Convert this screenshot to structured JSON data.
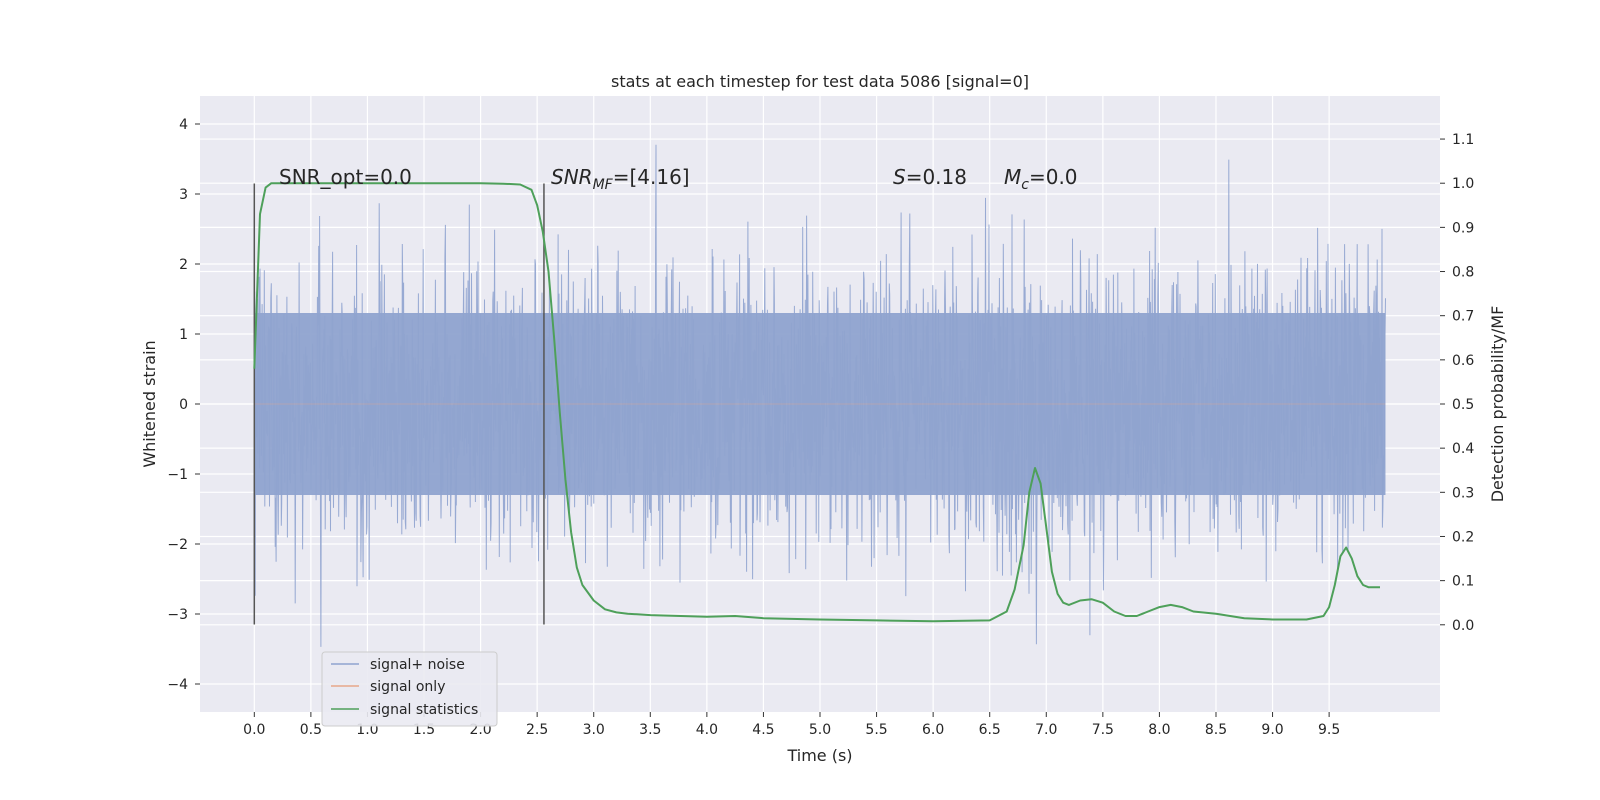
{
  "chart_data": {
    "type": "line",
    "title": "stats at each timestep for test data 5086 [signal=0]",
    "xlabel": "Time (s)",
    "ylabel": "Whitened strain",
    "y2label": "Detection probability/MF",
    "xlim": [
      -0.48,
      10.48
    ],
    "ylim": [
      -4.4,
      4.4
    ],
    "y2lim": [
      -0.1975,
      1.1975
    ],
    "x_ticks": [
      0.0,
      0.5,
      1.0,
      1.5,
      2.0,
      2.5,
      3.0,
      3.5,
      4.0,
      4.5,
      5.0,
      5.5,
      6.0,
      6.5,
      7.0,
      7.5,
      8.0,
      8.5,
      9.0,
      9.5
    ],
    "x_tick_labels": [
      "0.0",
      "0.5",
      "1.0",
      "1.5",
      "2.0",
      "2.5",
      "3.0",
      "3.5",
      "4.0",
      "4.5",
      "5.0",
      "5.5",
      "6.0",
      "6.5",
      "7.0",
      "7.5",
      "8.0",
      "8.5",
      "9.0",
      "9.5"
    ],
    "y_ticks": [
      4,
      3,
      2,
      1,
      0,
      -1,
      -2,
      -3,
      -4
    ],
    "y_tick_labels": [
      "4",
      "3",
      "2",
      "1",
      "0",
      "−1",
      "−2",
      "−3",
      "−4"
    ],
    "y2_ticks": [
      1.1,
      1.0,
      0.9,
      0.8,
      0.7,
      0.6,
      0.5,
      0.4,
      0.3,
      0.2,
      0.1,
      0.0
    ],
    "y2_tick_labels": [
      "1.1",
      "1.0",
      "0.9",
      "0.8",
      "0.7",
      "0.6",
      "0.5",
      "0.4",
      "0.3",
      "0.2",
      "0.1",
      "0.0"
    ],
    "grid": true,
    "legend_position": "lower-left",
    "legend": [
      {
        "label": "signal+ noise",
        "color": "#8fa3cf"
      },
      {
        "label": "signal only",
        "color": "#e8a88a"
      },
      {
        "label": "signal statistics",
        "color": "#4ea05a"
      }
    ],
    "annotations": {
      "snr_opt": "SNR_opt=0.0",
      "snr_mf_main": "SNR",
      "snr_mf_sub": "MF",
      "snr_mf_rest": "=[4.16]",
      "s_main": "S",
      "s_rest": "=0.18",
      "mc_main": "M",
      "mc_sub": "c",
      "mc_rest": "=0.0"
    },
    "vertical_markers": [
      {
        "x": 0.0,
        "y_range": [
          -3.15,
          3.15
        ]
      },
      {
        "x": 2.56,
        "y_range": [
          -3.15,
          3.15
        ]
      }
    ],
    "series": [
      {
        "name": "signal+ noise",
        "color": "#8fa3cf",
        "x_range": [
          0.0,
          9.998
        ],
        "core_range": [
          -1.3,
          1.3
        ],
        "envelope": [
          -2.5,
          2.5
        ],
        "max_abs": 4.05,
        "note_values": "whitened noise, dense samples"
      },
      {
        "name": "signal only",
        "color": "#e8a88a",
        "x": [
          0.0,
          9.998
        ],
        "y": [
          0.0,
          0.0
        ]
      },
      {
        "name": "signal statistics",
        "color": "#4ea05a",
        "axis": "right",
        "x": [
          0.0,
          0.05,
          0.1,
          0.15,
          0.25,
          0.5,
          1.0,
          1.5,
          2.0,
          2.2,
          2.35,
          2.45,
          2.5,
          2.55,
          2.6,
          2.65,
          2.7,
          2.75,
          2.8,
          2.85,
          2.9,
          3.0,
          3.1,
          3.2,
          3.3,
          3.5,
          4.0,
          4.25,
          4.5,
          5.0,
          5.5,
          6.0,
          6.5,
          6.65,
          6.72,
          6.8,
          6.85,
          6.9,
          6.95,
          7.0,
          7.05,
          7.1,
          7.15,
          7.2,
          7.3,
          7.4,
          7.5,
          7.6,
          7.7,
          7.8,
          7.9,
          8.0,
          8.1,
          8.2,
          8.3,
          8.5,
          8.75,
          9.0,
          9.3,
          9.45,
          9.5,
          9.55,
          9.6,
          9.65,
          9.7,
          9.75,
          9.8,
          9.85,
          9.9,
          9.95
        ],
        "y": [
          0.58,
          0.93,
          0.99,
          1.0,
          1.0,
          1.0,
          1.0,
          1.0,
          1.0,
          0.999,
          0.997,
          0.985,
          0.95,
          0.89,
          0.8,
          0.65,
          0.48,
          0.33,
          0.21,
          0.13,
          0.09,
          0.055,
          0.035,
          0.028,
          0.025,
          0.022,
          0.018,
          0.02,
          0.015,
          0.012,
          0.01,
          0.008,
          0.01,
          0.03,
          0.08,
          0.18,
          0.3,
          0.355,
          0.32,
          0.22,
          0.12,
          0.07,
          0.05,
          0.045,
          0.055,
          0.058,
          0.05,
          0.03,
          0.02,
          0.02,
          0.03,
          0.04,
          0.045,
          0.04,
          0.03,
          0.025,
          0.015,
          0.012,
          0.012,
          0.02,
          0.04,
          0.09,
          0.155,
          0.175,
          0.15,
          0.11,
          0.09,
          0.085,
          0.085,
          0.085
        ]
      }
    ]
  }
}
